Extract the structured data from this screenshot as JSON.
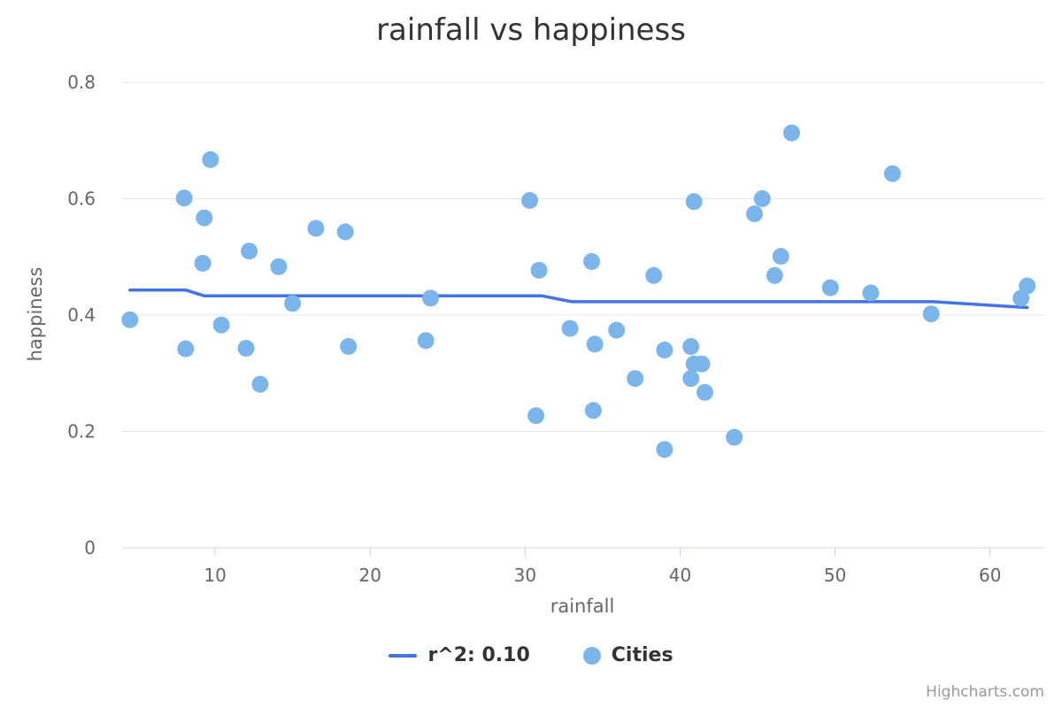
{
  "chart_data": {
    "type": "scatter",
    "title": "rainfall vs happiness",
    "xlabel": "rainfall",
    "ylabel": "happiness",
    "xlim": [
      4,
      63.5
    ],
    "ylim": [
      0,
      0.8
    ],
    "x_ticks": [
      10,
      20,
      30,
      40,
      50,
      60
    ],
    "y_ticks": [
      0,
      0.2,
      0.4,
      0.6,
      0.8
    ],
    "grid": "horizontal",
    "legend_position": "bottom-center",
    "series": [
      {
        "name": "r^2: 0.10",
        "kind": "line",
        "color": "#4472E8",
        "points": [
          [
            4.5,
            0.443
          ],
          [
            8.1,
            0.443
          ],
          [
            9.3,
            0.433
          ],
          [
            31.1,
            0.433
          ],
          [
            33.0,
            0.423
          ],
          [
            56.3,
            0.423
          ],
          [
            62.4,
            0.413
          ]
        ]
      },
      {
        "name": "Cities",
        "kind": "scatter",
        "color": "#7CB5EC",
        "points": [
          [
            4.5,
            0.392
          ],
          [
            8.0,
            0.601
          ],
          [
            8.1,
            0.342
          ],
          [
            9.2,
            0.489
          ],
          [
            9.3,
            0.567
          ],
          [
            9.7,
            0.667
          ],
          [
            10.4,
            0.383
          ],
          [
            12.0,
            0.343
          ],
          [
            12.2,
            0.51
          ],
          [
            12.9,
            0.281
          ],
          [
            14.1,
            0.483
          ],
          [
            15.0,
            0.42
          ],
          [
            16.5,
            0.549
          ],
          [
            18.4,
            0.543
          ],
          [
            18.6,
            0.346
          ],
          [
            23.6,
            0.356
          ],
          [
            23.9,
            0.429
          ],
          [
            30.3,
            0.597
          ],
          [
            30.7,
            0.227
          ],
          [
            30.9,
            0.477
          ],
          [
            32.9,
            0.377
          ],
          [
            34.3,
            0.492
          ],
          [
            34.4,
            0.236
          ],
          [
            34.5,
            0.35
          ],
          [
            35.9,
            0.374
          ],
          [
            37.1,
            0.291
          ],
          [
            38.3,
            0.468
          ],
          [
            39.0,
            0.34
          ],
          [
            39.0,
            0.169
          ],
          [
            40.7,
            0.346
          ],
          [
            40.7,
            0.291
          ],
          [
            40.9,
            0.595
          ],
          [
            40.9,
            0.316
          ],
          [
            41.4,
            0.316
          ],
          [
            41.6,
            0.267
          ],
          [
            43.5,
            0.19
          ],
          [
            44.8,
            0.574
          ],
          [
            45.3,
            0.6
          ],
          [
            46.1,
            0.468
          ],
          [
            46.5,
            0.501
          ],
          [
            47.2,
            0.713
          ],
          [
            49.7,
            0.447
          ],
          [
            52.3,
            0.438
          ],
          [
            53.7,
            0.643
          ],
          [
            56.2,
            0.402
          ],
          [
            62.0,
            0.429
          ],
          [
            62.4,
            0.45
          ]
        ]
      }
    ]
  },
  "credits": "Highcharts.com"
}
